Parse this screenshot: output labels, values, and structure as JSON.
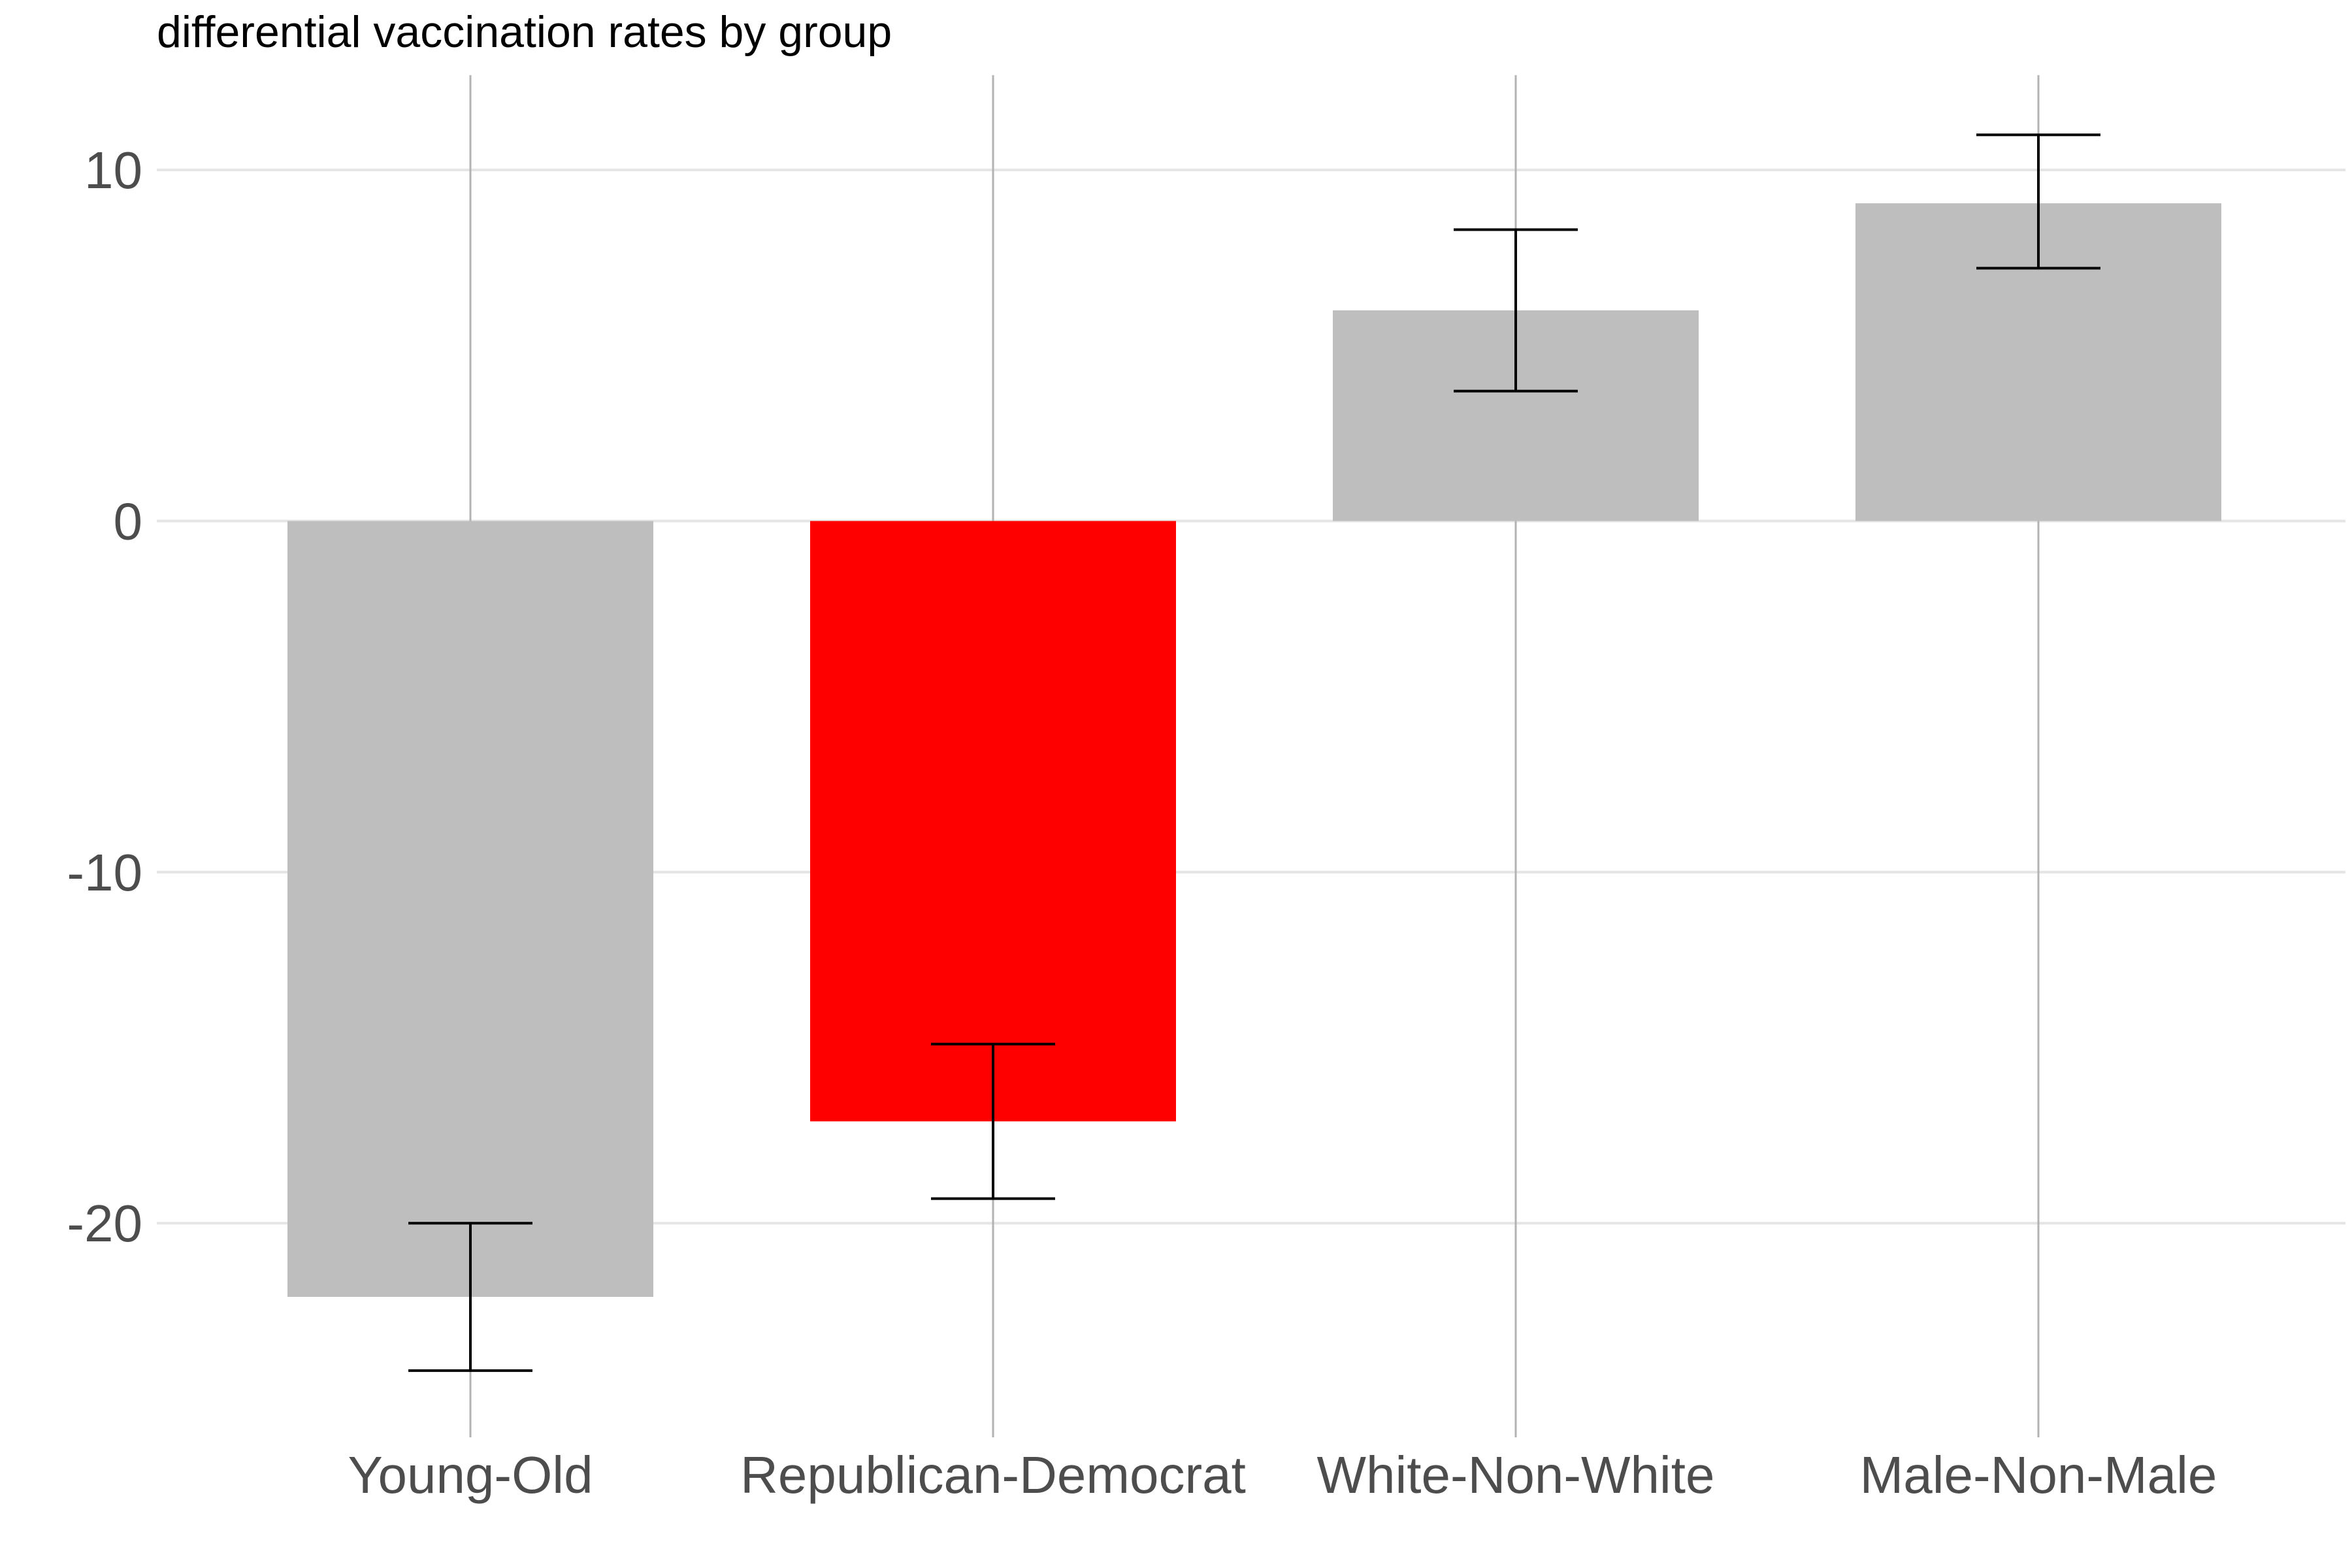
{
  "chart_data": {
    "type": "bar",
    "title": "differential vaccination rates by group",
    "xlabel": "",
    "ylabel": "",
    "categories": [
      "Young-Old",
      "Republican-Democrat",
      "White-Non-White",
      "Male-Non-Male"
    ],
    "values": [
      -22.1,
      -17.1,
      6.0,
      9.05
    ],
    "error_low": [
      -24.2,
      -19.3,
      3.7,
      7.2
    ],
    "error_high": [
      -20.0,
      -14.9,
      8.3,
      11.0
    ],
    "bar_colors": [
      "#bebebe",
      "#ff0000",
      "#bebebe",
      "#bebebe"
    ],
    "y_ticks": [
      -20,
      -10,
      0,
      10
    ],
    "y_tick_labels": [
      "-20",
      "-10",
      "0",
      "10"
    ],
    "ylim": [
      -26.1,
      12.7
    ],
    "grid": true,
    "legend": "none",
    "colors": {
      "grid": "#e5e5e5",
      "x_grid": "#b3b3b3",
      "error_bar": "#000000",
      "tick_text": "#4d4d4d"
    }
  }
}
